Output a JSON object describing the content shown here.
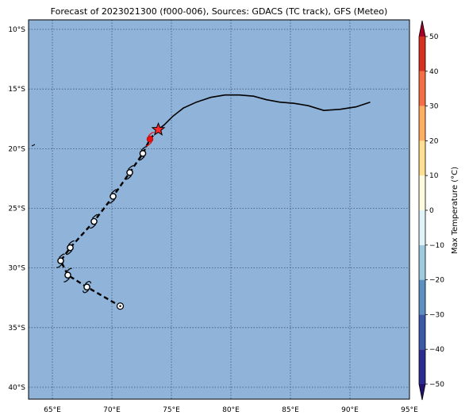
{
  "title": "Forecast of 2023021300 (f000-006), Sources: GDACS (TC track), GFS (Meteo)",
  "map": {
    "lon_range": [
      63,
      95
    ],
    "lat_range": [
      -41,
      -9.2
    ],
    "ocean_color": "#8fb3d9",
    "gridlines": true,
    "lon_ticks": [
      {
        "value": 65,
        "label": "65°E"
      },
      {
        "value": 70,
        "label": "70°E"
      },
      {
        "value": 75,
        "label": "75°E"
      },
      {
        "value": 80,
        "label": "80°E"
      },
      {
        "value": 85,
        "label": "85°E"
      },
      {
        "value": 90,
        "label": "90°E"
      },
      {
        "value": 95,
        "label": "95°E"
      }
    ],
    "lat_ticks": [
      {
        "value": -10,
        "label": "10°S"
      },
      {
        "value": -15,
        "label": "15°S"
      },
      {
        "value": -20,
        "label": "20°S"
      },
      {
        "value": -25,
        "label": "25°S"
      },
      {
        "value": -30,
        "label": "30°S"
      },
      {
        "value": -35,
        "label": "35°S"
      },
      {
        "value": -40,
        "label": "40°S"
      }
    ]
  },
  "tracks": {
    "past_track": {
      "color": "#000000",
      "style": "solid",
      "points": [
        [
          91.7,
          -16.1
        ],
        [
          90.5,
          -16.5
        ],
        [
          89.2,
          -16.7
        ],
        [
          87.8,
          -16.8
        ],
        [
          86.5,
          -16.4
        ],
        [
          85.3,
          -16.2
        ],
        [
          84.1,
          -16.1
        ],
        [
          83.0,
          -15.9
        ],
        [
          81.9,
          -15.6
        ],
        [
          80.7,
          -15.5
        ],
        [
          79.5,
          -15.5
        ],
        [
          78.3,
          -15.7
        ],
        [
          77.1,
          -16.1
        ],
        [
          76.0,
          -16.6
        ],
        [
          75.1,
          -17.3
        ],
        [
          74.4,
          -18.0
        ],
        [
          73.9,
          -18.4
        ]
      ]
    },
    "forecast_track": {
      "color": "#000000",
      "style": "dashed",
      "points": [
        [
          73.9,
          -18.4
        ],
        [
          73.2,
          -19.2
        ],
        [
          72.6,
          -20.4
        ],
        [
          71.5,
          -22.0
        ],
        [
          70.1,
          -24.0
        ],
        [
          68.5,
          -26.1
        ],
        [
          66.5,
          -28.3
        ],
        [
          65.7,
          -29.4
        ],
        [
          66.3,
          -30.6
        ],
        [
          67.9,
          -31.6
        ],
        [
          70.7,
          -33.2
        ]
      ]
    },
    "current_position": {
      "lon": 73.9,
      "lat": -18.4,
      "marker": "star",
      "color": "#ff2a2a"
    },
    "red_storm_point": {
      "lon": 73.2,
      "lat": -19.2,
      "color": "#e81010"
    },
    "storm_symbols": [
      {
        "lon": 72.6,
        "lat": -20.4,
        "icon": "tropical-cyclone-symbol"
      },
      {
        "lon": 71.5,
        "lat": -22.0,
        "icon": "tropical-cyclone-symbol"
      },
      {
        "lon": 70.1,
        "lat": -24.0,
        "icon": "tropical-cyclone-symbol"
      },
      {
        "lon": 68.5,
        "lat": -26.1,
        "icon": "tropical-cyclone-symbol"
      },
      {
        "lon": 66.5,
        "lat": -28.3,
        "icon": "tropical-cyclone-symbol"
      },
      {
        "lon": 65.7,
        "lat": -29.4,
        "icon": "tropical-cyclone-symbol"
      },
      {
        "lon": 66.3,
        "lat": -30.6,
        "icon": "tropical-cyclone-symbol"
      },
      {
        "lon": 67.9,
        "lat": -31.6,
        "icon": "tropical-storm-symbol"
      },
      {
        "lon": 70.7,
        "lat": -33.2,
        "icon": "low-pressure-symbol"
      }
    ]
  },
  "colorbar": {
    "label": "Max Temperature (°C)",
    "min": -55,
    "max": 55,
    "ticks": [
      {
        "value": 50,
        "label": "50"
      },
      {
        "value": 40,
        "label": "40"
      },
      {
        "value": 30,
        "label": "30"
      },
      {
        "value": 20,
        "label": "20"
      },
      {
        "value": 10,
        "label": "10"
      },
      {
        "value": 0,
        "label": "0"
      },
      {
        "value": -10,
        "label": "−10"
      },
      {
        "value": -20,
        "label": "−20"
      },
      {
        "value": -30,
        "label": "−30"
      },
      {
        "value": -40,
        "label": "−40"
      },
      {
        "value": -50,
        "label": "−50"
      }
    ],
    "bins": [
      {
        "from": -55,
        "to": -50,
        "color": "#23136e"
      },
      {
        "from": -50,
        "to": -40,
        "color": "#2c2b8f"
      },
      {
        "from": -40,
        "to": -30,
        "color": "#3a58a6"
      },
      {
        "from": -30,
        "to": -20,
        "color": "#5c8fc2"
      },
      {
        "from": -20,
        "to": -10,
        "color": "#9ecae0"
      },
      {
        "from": -10,
        "to": 0,
        "color": "#e0f3f8"
      },
      {
        "from": 0,
        "to": 10,
        "color": "#fffbe0"
      },
      {
        "from": 10,
        "to": 20,
        "color": "#fee090"
      },
      {
        "from": 20,
        "to": 30,
        "color": "#fdae61"
      },
      {
        "from": 30,
        "to": 40,
        "color": "#f46d43"
      },
      {
        "from": 40,
        "to": 50,
        "color": "#d7301f"
      },
      {
        "from": 50,
        "to": 55,
        "color": "#a50026"
      }
    ]
  }
}
